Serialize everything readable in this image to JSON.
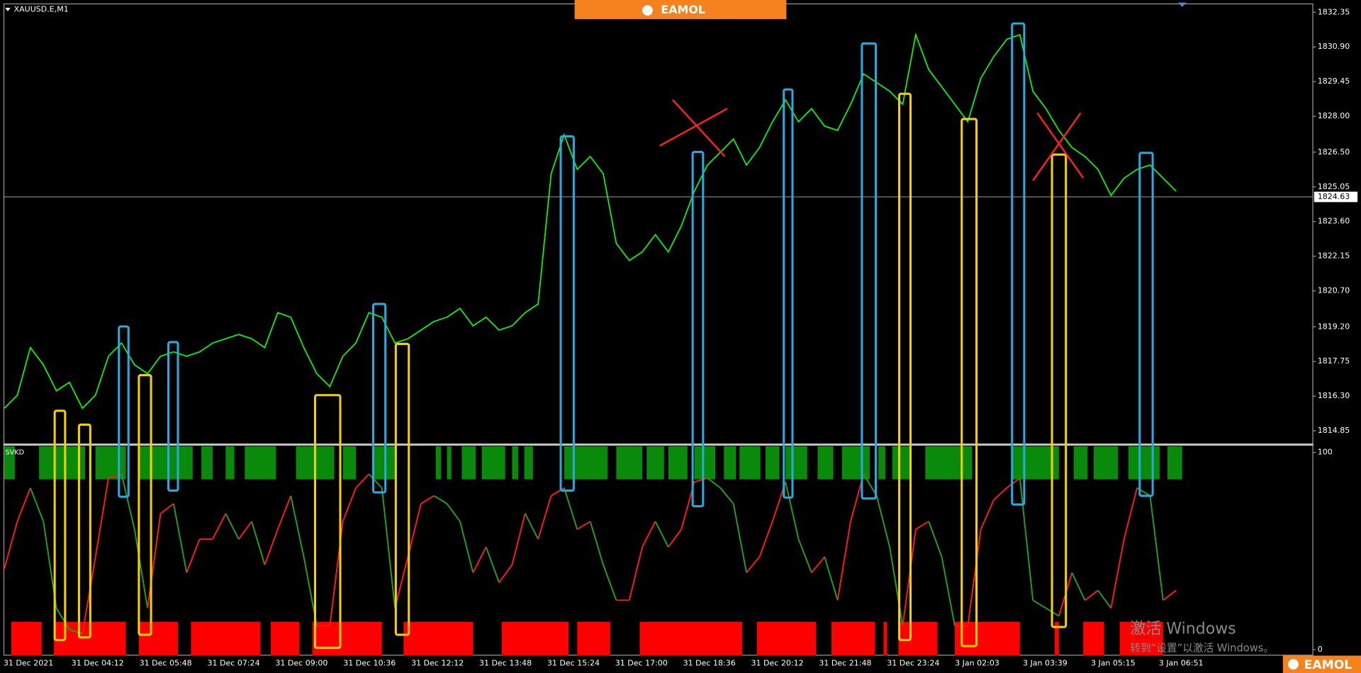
{
  "logo": "EAMOL",
  "watermark": {
    "line1": "激活 Windows",
    "line2": "转到“设置”以激活 Windows。"
  },
  "chart_data": [
    {
      "type": "line",
      "title": "XAUUSD.E,M1",
      "x_labels": [
        "31 Dec 2021",
        "31 Dec 04:12",
        "31 Dec 05:48",
        "31 Dec 07:24",
        "31 Dec 09:00",
        "31 Dec 10:36",
        "31 Dec 12:12",
        "31 Dec 13:48",
        "31 Dec 15:24",
        "31 Dec 17:00",
        "31 Dec 18:36",
        "31 Dec 20:12",
        "31 Dec 21:48",
        "31 Dec 23:24",
        "3 Jan 02:03",
        "3 Jan 03:39",
        "3 Jan 05:15",
        "3 Jan 06:51"
      ],
      "series": [
        {
          "color": "#00ff00",
          "values": [
            1815.79,
            1816.34,
            1818.33,
            1817.61,
            1816.52,
            1816.88,
            1815.79,
            1816.34,
            1817.97,
            1818.52,
            1817.61,
            1817.24,
            1817.97,
            1818.15,
            1817.97,
            1818.15,
            1818.52,
            1818.7,
            1818.88,
            1818.7,
            1818.33,
            1819.79,
            1819.6,
            1818.33,
            1817.24,
            1816.7,
            1817.97,
            1818.52,
            1819.79,
            1819.6,
            1818.52,
            1818.7,
            1819.06,
            1819.42,
            1819.6,
            1819.97,
            1819.24,
            1819.6,
            1819.06,
            1819.24,
            1819.79,
            1820.15,
            1825.6,
            1827.23,
            1825.78,
            1826.32,
            1825.6,
            1822.69,
            1821.97,
            1822.33,
            1823.05,
            1822.33,
            1823.42,
            1824.87,
            1825.96,
            1826.5,
            1827.05,
            1825.96,
            1826.69,
            1827.77,
            1828.68,
            1827.77,
            1828.32,
            1827.59,
            1827.41,
            1828.5,
            1829.77,
            1829.41,
            1829.05,
            1828.5,
            1831.41,
            1829.95,
            1829.23,
            1828.5,
            1827.77,
            1829.59,
            1830.5,
            1831.22,
            1831.41,
            1829.05,
            1828.32,
            1827.41,
            1826.69,
            1826.32,
            1825.78,
            1824.69,
            1825.41,
            1825.78,
            1825.96,
            1825.41,
            1824.87
          ]
        }
      ],
      "current_price": 1824.63,
      "ylim": [
        1814.31,
        1832.68
      ],
      "yticks": [
        1832.35,
        {
          "value": 1830.9,
          "label": "1830.90"
        },
        1829.45,
        {
          "value": 1828,
          "label": "1828.00"
        },
        {
          "value": 1826.5,
          "label": "1826.50"
        },
        1825.05,
        {
          "value": 1823.6,
          "label": "1823.60"
        },
        1822.15,
        {
          "value": 1820.7,
          "label": "1820.70"
        },
        {
          "value": 1819.2,
          "label": "1819.20"
        },
        1817.75,
        {
          "value": 1816.3,
          "label": "1816.30"
        },
        1814.85
      ]
    },
    {
      "type": "line",
      "title": "SVKD",
      "series": [
        {
          "values": [
            41,
            65,
            82,
            65,
            21,
            10,
            8,
            47,
            87,
            89,
            61,
            21,
            69,
            74,
            39,
            56,
            56,
            69,
            56,
            65,
            43,
            61,
            78,
            47,
            12,
            12,
            65,
            82,
            89,
            82,
            21,
            47,
            74,
            78,
            74,
            65,
            39,
            52,
            34,
            43,
            69,
            56,
            78,
            82,
            61,
            65,
            43,
            25,
            25,
            52,
            65,
            52,
            61,
            85,
            87,
            82,
            74,
            39,
            47,
            65,
            85,
            56,
            39,
            47,
            25,
            65,
            89,
            78,
            52,
            12,
            61,
            65,
            47,
            12,
            12,
            61,
            76,
            82,
            87,
            25,
            21,
            17,
            39,
            25,
            30,
            21,
            56,
            82,
            78,
            25,
            30
          ]
        }
      ],
      "rising_color": "#ff1a1a",
      "falling_color": "#1fa01f",
      "ylim": [
        -3.1,
        103.1
      ],
      "yticks": [
        0,
        100
      ]
    }
  ]
}
